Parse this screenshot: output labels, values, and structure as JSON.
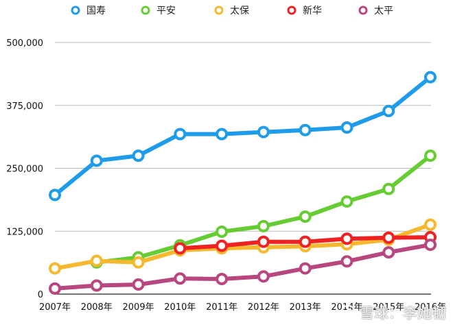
{
  "chart_data": {
    "type": "line",
    "title": "",
    "xlabel": "",
    "ylabel": "",
    "categories": [
      "2007年",
      "2008年",
      "2009年",
      "2010年",
      "2011年",
      "2012年",
      "2013年",
      "2014年",
      "2015年",
      "2016年"
    ],
    "ylim": [
      0,
      500000
    ],
    "yticks": [
      0,
      125000,
      250000,
      375000,
      500000
    ],
    "ytick_labels": [
      "0",
      "125,000",
      "250,000",
      "375,000",
      "500,000"
    ],
    "grid": true,
    "legend": "top",
    "series": [
      {
        "name": "国寿",
        "color": "#1e9be9",
        "values": [
          197000,
          265000,
          275000,
          318000,
          318000,
          322000,
          326000,
          331000,
          364000,
          431000
        ]
      },
      {
        "name": "平安",
        "color": "#66cc33",
        "values": [
          null,
          63000,
          73000,
          97000,
          124000,
          135000,
          154000,
          184000,
          209000,
          275000
        ]
      },
      {
        "name": "太保",
        "color": "#f5b82e",
        "values": [
          51000,
          66000,
          63000,
          87000,
          91000,
          93000,
          95000,
          99000,
          108000,
          138000
        ]
      },
      {
        "name": "新华",
        "color": "#ee2222",
        "values": [
          null,
          null,
          null,
          91000,
          96000,
          104000,
          104000,
          110000,
          112000,
          113000
        ]
      },
      {
        "name": "太平",
        "color": "#b8467f",
        "values": [
          11000,
          17000,
          19000,
          31000,
          30000,
          35000,
          51000,
          65000,
          83000,
          98000
        ]
      }
    ]
  },
  "watermark": {
    "text": "雪球：李她韧",
    "icon": "xueqiu-logo-icon"
  }
}
